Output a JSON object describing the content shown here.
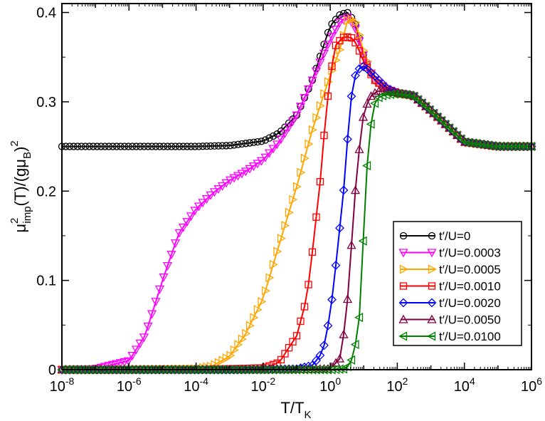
{
  "chart_data": {
    "type": "line",
    "x_scale": "log",
    "xlim": [
      1e-08,
      1000000.0
    ],
    "ylim": [
      0,
      0.41
    ],
    "xlabel": {
      "main": "T/T",
      "sub": "K"
    },
    "ylabel": {
      "mu": "μ",
      "sup2": "2",
      "sub_imp": "imp",
      "mid": "(T)/(gμ",
      "sub_B": "B",
      "end": ")",
      "sup_end": "2"
    },
    "x_ticks": [
      {
        "value": 1e-08,
        "base": "10",
        "exp": "-8"
      },
      {
        "value": 1e-06,
        "base": "10",
        "exp": "-6"
      },
      {
        "value": 0.0001,
        "base": "10",
        "exp": "-4"
      },
      {
        "value": 0.01,
        "base": "10",
        "exp": "-2"
      },
      {
        "value": 1,
        "base": "10",
        "exp": "0"
      },
      {
        "value": 100.0,
        "base": "10",
        "exp": "2"
      },
      {
        "value": 10000.0,
        "base": "10",
        "exp": "4"
      },
      {
        "value": 1000000.0,
        "base": "10",
        "exp": "6"
      }
    ],
    "y_ticks": [
      {
        "value": 0,
        "label": "0"
      },
      {
        "value": 0.1,
        "label": "0.1"
      },
      {
        "value": 0.2,
        "label": "0.2"
      },
      {
        "value": 0.3,
        "label": "0.3"
      },
      {
        "value": 0.4,
        "label": "0.4"
      }
    ],
    "legend_position": "bottom-right",
    "series": [
      {
        "name": "t′/U=0",
        "color": "#000000",
        "marker": "circle",
        "x": [
          1e-08,
          1e-06,
          0.0001,
          0.001,
          0.01,
          0.03,
          0.1,
          0.3,
          0.6,
          1,
          2,
          3.5,
          6,
          10,
          20,
          50,
          100,
          300,
          1000,
          10000.0,
          100000.0,
          1000000.0
        ],
        "y": [
          0.25,
          0.25,
          0.25,
          0.251,
          0.256,
          0.265,
          0.285,
          0.325,
          0.36,
          0.385,
          0.398,
          0.4,
          0.385,
          0.35,
          0.325,
          0.314,
          0.31,
          0.307,
          0.29,
          0.255,
          0.25,
          0.25
        ]
      },
      {
        "name": "t′/U=0.0003",
        "color": "#ff00ff",
        "marker": "triangle-down",
        "x": [
          1e-08,
          1e-07,
          1e-06,
          3e-06,
          1e-05,
          3e-05,
          0.0001,
          0.0003,
          0.001,
          0.003,
          0.01,
          0.03,
          0.1,
          0.3,
          1,
          2,
          3.5,
          6,
          10,
          20,
          50,
          100,
          300,
          1000,
          10000.0,
          100000.0,
          1000000.0
        ],
        "y": [
          0,
          0.001,
          0.01,
          0.038,
          0.1,
          0.152,
          0.18,
          0.197,
          0.212,
          0.222,
          0.235,
          0.255,
          0.285,
          0.325,
          0.37,
          0.39,
          0.395,
          0.38,
          0.35,
          0.325,
          0.314,
          0.31,
          0.307,
          0.29,
          0.255,
          0.25,
          0.25
        ]
      },
      {
        "name": "t′/U=0.0005",
        "color": "#ffa500",
        "marker": "triangle-right",
        "x": [
          1e-08,
          1e-06,
          0.0001,
          0.0003,
          0.001,
          0.003,
          0.01,
          0.03,
          0.1,
          0.3,
          1,
          2,
          3.5,
          6,
          10,
          20,
          50,
          100,
          300,
          1000,
          10000.0,
          100000.0,
          1000000.0
        ],
        "y": [
          0,
          0,
          0.001,
          0.004,
          0.015,
          0.04,
          0.08,
          0.14,
          0.205,
          0.27,
          0.33,
          0.36,
          0.395,
          0.388,
          0.355,
          0.326,
          0.314,
          0.31,
          0.307,
          0.29,
          0.255,
          0.25,
          0.25
        ]
      },
      {
        "name": "t′/U=0.0010",
        "color": "#ff0000",
        "marker": "square",
        "x": [
          1e-08,
          0.0001,
          0.01,
          0.03,
          0.1,
          0.2,
          0.3,
          0.5,
          0.7,
          1,
          1.5,
          2.5,
          4,
          6,
          10,
          20,
          50,
          100,
          300,
          1000,
          10000.0,
          100000.0,
          1000000.0
        ],
        "y": [
          0,
          0,
          0.002,
          0.008,
          0.038,
          0.08,
          0.135,
          0.21,
          0.275,
          0.33,
          0.365,
          0.372,
          0.373,
          0.365,
          0.345,
          0.325,
          0.314,
          0.31,
          0.307,
          0.29,
          0.255,
          0.25,
          0.25
        ]
      },
      {
        "name": "t′/U=0.0020",
        "color": "#0000ff",
        "marker": "diamond",
        "x": [
          1e-08,
          0.001,
          0.1,
          0.3,
          0.6,
          1,
          1.5,
          2.5,
          4,
          6,
          10,
          20,
          50,
          100,
          300,
          1000,
          10000.0,
          100000.0,
          1000000.0
        ],
        "y": [
          0,
          0,
          0.001,
          0.005,
          0.02,
          0.062,
          0.12,
          0.2,
          0.3,
          0.335,
          0.34,
          0.33,
          0.315,
          0.31,
          0.307,
          0.29,
          0.255,
          0.25,
          0.25
        ]
      },
      {
        "name": "t′/U=0.0050",
        "color": "#800040",
        "marker": "triangle-up",
        "x": [
          1e-08,
          0.01,
          1,
          2,
          3,
          4,
          5,
          7,
          10,
          15,
          25,
          50,
          100,
          300,
          1000,
          10000.0,
          100000.0,
          1000000.0
        ],
        "y": [
          0,
          0,
          0.001,
          0.013,
          0.06,
          0.12,
          0.18,
          0.24,
          0.288,
          0.305,
          0.312,
          0.312,
          0.31,
          0.307,
          0.29,
          0.255,
          0.25,
          0.25
        ]
      },
      {
        "name": "t′/U=0.0100",
        "color": "#008000",
        "marker": "triangle-left",
        "x": [
          1e-08,
          0.01,
          1,
          3,
          5,
          8,
          10,
          13,
          17,
          22,
          30,
          50,
          100,
          300,
          1000,
          10000.0,
          100000.0,
          1000000.0
        ],
        "y": [
          0,
          0,
          0,
          0.001,
          0.015,
          0.068,
          0.16,
          0.238,
          0.28,
          0.3,
          0.306,
          0.308,
          0.309,
          0.307,
          0.29,
          0.255,
          0.25,
          0.25
        ]
      }
    ]
  }
}
